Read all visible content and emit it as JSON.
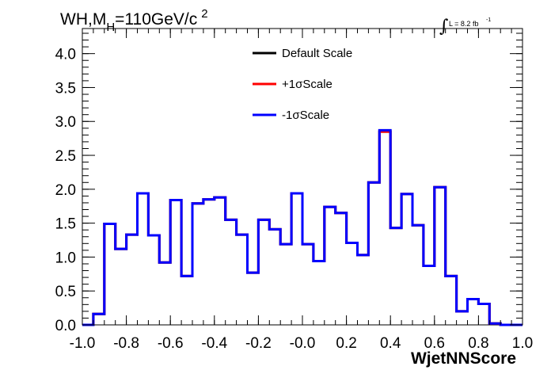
{
  "chart_data": {
    "type": "line",
    "title": "WH,M",
    "title_sub": "H",
    "title_rest": "=110GeV/c",
    "title_sup": "2",
    "lumi_text": "L = 8.2 fb",
    "lumi_sup": "-1",
    "xlabel": "WjetNNScore",
    "ylabel": "",
    "xlim": [
      -1.0,
      1.0
    ],
    "ylim": [
      0.0,
      4.37
    ],
    "x_ticks": [
      -1.0,
      -0.8,
      -0.6,
      -0.4,
      -0.2,
      0.0,
      0.2,
      0.4,
      0.6,
      0.8,
      1.0
    ],
    "x_tick_labels": [
      "-1.0",
      "-0.8",
      "-0.6",
      "-0.4",
      "-0.2",
      "-0.0",
      "0.2",
      "0.4",
      "0.6",
      "0.8",
      "1.0"
    ],
    "y_ticks": [
      0.0,
      0.5,
      1.0,
      1.5,
      2.0,
      2.5,
      3.0,
      3.5,
      4.0
    ],
    "y_tick_labels": [
      "0.0",
      "0.5",
      "1.0",
      "1.5",
      "2.0",
      "2.5",
      "3.0",
      "3.5",
      "4.0"
    ],
    "grid": false,
    "legend_position": "top-center",
    "bin_edges": [
      -1.0,
      -0.95,
      -0.9,
      -0.85,
      -0.8,
      -0.75,
      -0.7,
      -0.65,
      -0.6,
      -0.55,
      -0.5,
      -0.45,
      -0.4,
      -0.35,
      -0.3,
      -0.25,
      -0.2,
      -0.15,
      -0.1,
      -0.05,
      0.0,
      0.05,
      0.1,
      0.15,
      0.2,
      0.25,
      0.3,
      0.35,
      0.4,
      0.45,
      0.5,
      0.55,
      0.6,
      0.65,
      0.7,
      0.75,
      0.8,
      0.85,
      0.9,
      0.95,
      1.0
    ],
    "series": [
      {
        "name": "Default Scale",
        "color": "#000000",
        "values": [
          0.0,
          0.16,
          1.49,
          1.12,
          1.33,
          1.94,
          1.32,
          0.92,
          1.84,
          0.72,
          1.79,
          1.85,
          1.88,
          1.55,
          1.33,
          0.77,
          1.55,
          1.41,
          1.19,
          1.94,
          1.19,
          0.94,
          1.74,
          1.65,
          1.21,
          1.03,
          2.1,
          2.85,
          1.43,
          1.93,
          1.47,
          0.87,
          2.03,
          0.72,
          0.2,
          0.38,
          0.31,
          0.02,
          0.0,
          0.0
        ]
      },
      {
        "name": "+1σScale",
        "color": "#ff0000",
        "values": [
          0.0,
          0.16,
          1.49,
          1.12,
          1.33,
          1.94,
          1.32,
          0.92,
          1.84,
          0.72,
          1.79,
          1.85,
          1.88,
          1.55,
          1.33,
          0.77,
          1.55,
          1.41,
          1.19,
          1.94,
          1.19,
          0.94,
          1.74,
          1.65,
          1.21,
          1.03,
          2.1,
          2.85,
          1.43,
          1.93,
          1.47,
          0.87,
          2.03,
          0.72,
          0.2,
          0.38,
          0.31,
          0.02,
          0.0,
          0.0
        ]
      },
      {
        "name": "-1σScale",
        "color": "#0000ff",
        "values": [
          0.0,
          0.16,
          1.49,
          1.12,
          1.33,
          1.94,
          1.32,
          0.92,
          1.84,
          0.72,
          1.79,
          1.85,
          1.88,
          1.55,
          1.33,
          0.77,
          1.55,
          1.41,
          1.19,
          1.94,
          1.19,
          0.94,
          1.74,
          1.65,
          1.21,
          1.03,
          2.1,
          2.87,
          1.43,
          1.93,
          1.47,
          0.87,
          2.03,
          0.72,
          0.2,
          0.38,
          0.31,
          0.02,
          0.0,
          0.0
        ]
      }
    ]
  }
}
